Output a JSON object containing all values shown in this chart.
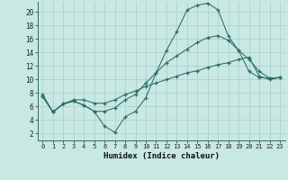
{
  "xlabel": "Humidex (Indice chaleur)",
  "xlim": [
    -0.5,
    23.5
  ],
  "ylim": [
    1,
    21.5
  ],
  "xticks": [
    0,
    1,
    2,
    3,
    4,
    5,
    6,
    7,
    8,
    9,
    10,
    11,
    12,
    13,
    14,
    15,
    16,
    17,
    18,
    19,
    20,
    21,
    22,
    23
  ],
  "yticks": [
    2,
    4,
    6,
    8,
    10,
    12,
    14,
    16,
    18,
    20
  ],
  "bg_color": "#c8e8e4",
  "grid_color": "#a8cccc",
  "line_color": "#2a6e62",
  "line1_x": [
    0,
    1,
    2,
    3,
    4,
    5,
    6,
    7,
    8,
    9,
    10,
    11,
    12,
    13,
    14,
    15,
    16,
    17,
    18,
    19,
    20,
    21,
    22,
    23
  ],
  "line1_y": [
    7.5,
    5.2,
    6.4,
    6.8,
    6.2,
    5.3,
    3.1,
    2.2,
    4.5,
    5.3,
    7.3,
    11.0,
    14.3,
    17.1,
    20.3,
    21.0,
    21.3,
    20.3,
    16.4,
    14.3,
    11.2,
    10.3,
    10.2,
    10.3
  ],
  "line2_x": [
    0,
    1,
    2,
    3,
    4,
    5,
    6,
    7,
    8,
    9,
    10,
    11,
    12,
    13,
    14,
    15,
    16,
    17,
    18,
    19,
    20,
    21,
    22,
    23
  ],
  "line2_y": [
    7.5,
    5.2,
    6.4,
    6.8,
    6.2,
    5.3,
    5.3,
    5.8,
    7.0,
    7.8,
    9.5,
    11.0,
    12.5,
    13.5,
    14.5,
    15.5,
    16.2,
    16.5,
    15.8,
    14.3,
    13.0,
    11.2,
    10.2,
    10.3
  ],
  "line3_x": [
    0,
    1,
    2,
    3,
    4,
    5,
    6,
    7,
    8,
    9,
    10,
    11,
    12,
    13,
    14,
    15,
    16,
    17,
    18,
    19,
    20,
    21,
    22,
    23
  ],
  "line3_y": [
    7.8,
    5.2,
    6.4,
    7.0,
    7.0,
    6.5,
    6.5,
    7.0,
    7.8,
    8.3,
    9.0,
    9.5,
    10.0,
    10.5,
    11.0,
    11.3,
    11.8,
    12.2,
    12.5,
    13.0,
    13.3,
    10.5,
    10.0,
    10.3
  ]
}
